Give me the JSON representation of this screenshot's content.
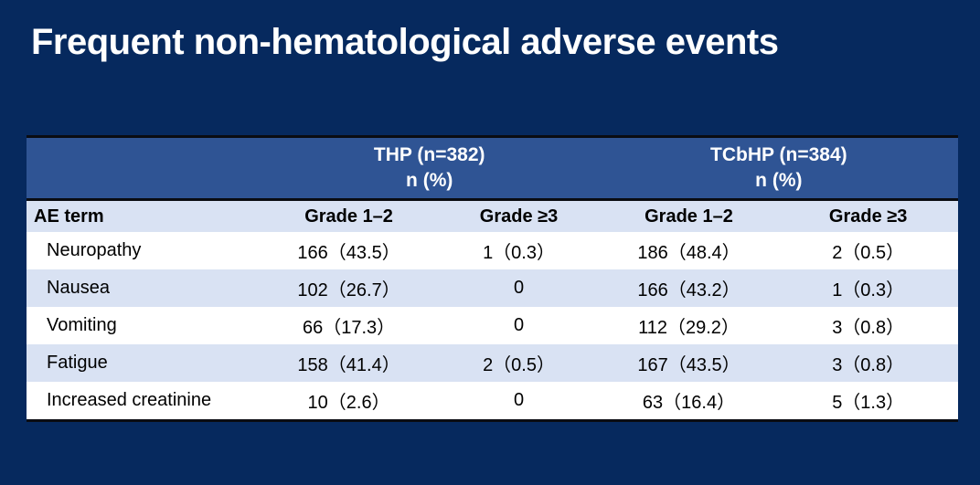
{
  "slide": {
    "title": "Frequent non-hematological adverse events",
    "colors": {
      "background": "#06295E",
      "table_header_bg": "#2F5494",
      "row_alt_bg": "#D9E2F3",
      "row_bg": "#FFFFFF",
      "rule_dark": "#0A0C12",
      "header_text": "#FFFFFF",
      "body_text": "#000000"
    }
  },
  "table": {
    "group_headers": [
      {
        "title": "THP (n=382)",
        "subtitle": "n (%)"
      },
      {
        "title": "TCbHP (n=384)",
        "subtitle": "n (%)"
      }
    ],
    "columns": [
      "AE term",
      "Grade 1–2",
      "Grade ≥3",
      "Grade 1–2",
      "Grade ≥3"
    ],
    "rows": [
      {
        "term": "Neuropathy",
        "values": [
          "166（43.5）",
          "1（0.3）",
          "186（48.4）",
          "2（0.5）"
        ]
      },
      {
        "term": "Nausea",
        "values": [
          "102（26.7）",
          "0",
          "166（43.2）",
          "1（0.3）"
        ]
      },
      {
        "term": "Vomiting",
        "values": [
          "66（17.3）",
          "0",
          "112（29.2）",
          "3（0.8）"
        ]
      },
      {
        "term": "Fatigue",
        "values": [
          "158（41.4）",
          "2（0.5）",
          "167（43.5）",
          "3（0.8）"
        ]
      },
      {
        "term": "Increased creatinine",
        "values": [
          "10（2.6）",
          "0",
          "63（16.4）",
          "5（1.3）"
        ]
      }
    ]
  }
}
